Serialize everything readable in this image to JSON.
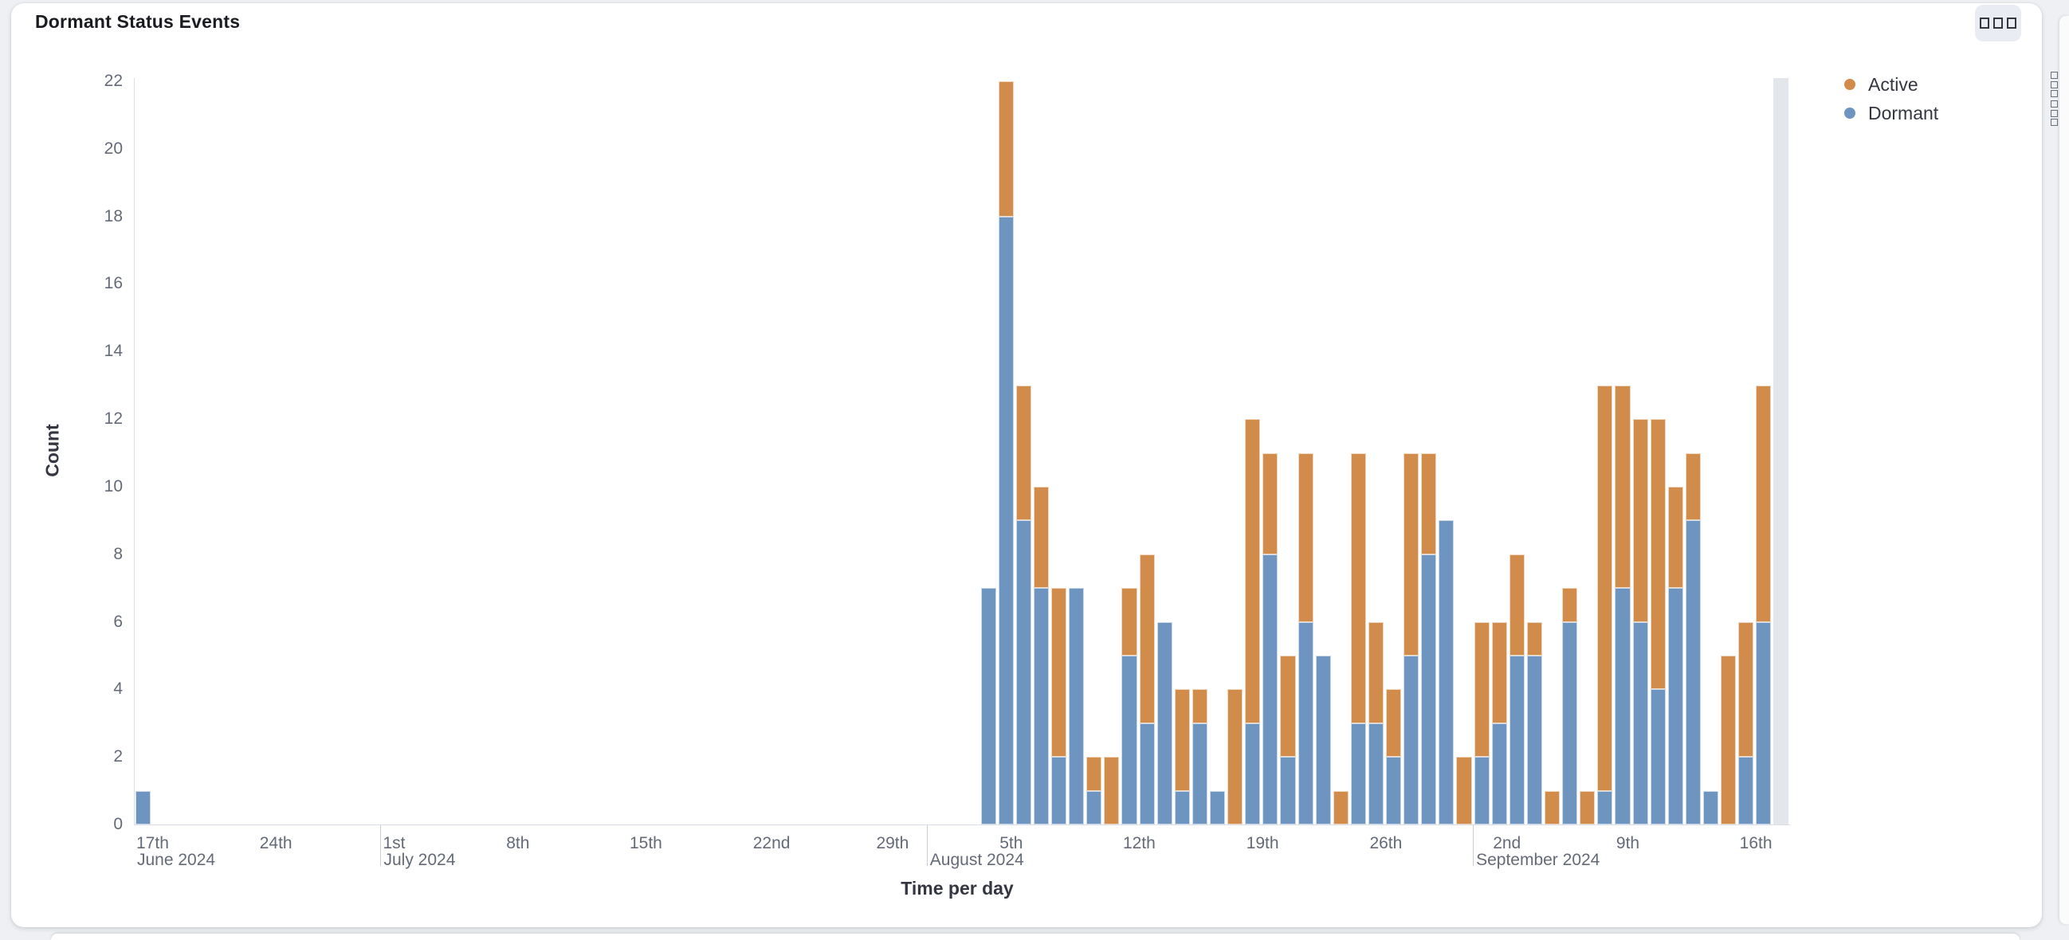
{
  "panel": {
    "title": "Dormant Status Events",
    "options_button": {
      "icon": "boxes-horizontal-icon"
    }
  },
  "legend": {
    "items": [
      {
        "label": "Active",
        "color": "#D18C4B"
      },
      {
        "label": "Dormant",
        "color": "#6E94C0"
      }
    ],
    "action_icon": "boxes-vertical-icon"
  },
  "chart_data": {
    "type": "bar",
    "stacked": true,
    "title": "Dormant Status Events",
    "xlabel": "Time per day",
    "ylabel": "Count",
    "ylim": [
      0,
      22
    ],
    "y_tick_step": 2,
    "grid": false,
    "legend_position": "right",
    "x_axis": {
      "start_date": "June 17, 2024",
      "end_date": "September 17, 2024",
      "total_day_slots": 94,
      "ticks": [
        {
          "offset": 0,
          "label": "17th"
        },
        {
          "offset": 7,
          "label": "24th"
        },
        {
          "offset": 14,
          "label": "1st"
        },
        {
          "offset": 21,
          "label": "8th"
        },
        {
          "offset": 28,
          "label": "15th"
        },
        {
          "offset": 35,
          "label": "22nd"
        },
        {
          "offset": 42,
          "label": "29th"
        },
        {
          "offset": 49,
          "label": "5th"
        },
        {
          "offset": 56,
          "label": "12th"
        },
        {
          "offset": 63,
          "label": "19th"
        },
        {
          "offset": 70,
          "label": "26th"
        },
        {
          "offset": 77,
          "label": "2nd"
        },
        {
          "offset": 84,
          "label": "9th"
        },
        {
          "offset": 91,
          "label": "16th"
        }
      ],
      "months": [
        {
          "offset": 0,
          "label": "June 2024",
          "line": false
        },
        {
          "offset": 14,
          "label": "July 2024",
          "line": true
        },
        {
          "offset": 45,
          "label": "August 2024",
          "line": true
        },
        {
          "offset": 76,
          "label": "September 2024",
          "line": true
        }
      ]
    },
    "series": [
      {
        "name": "Dormant",
        "color": "#6E94C0",
        "stack_order": "bottom"
      },
      {
        "name": "Active",
        "color": "#D18C4B",
        "stack_order": "top"
      }
    ],
    "points": [
      {
        "offset": 0,
        "date": "Jun 17",
        "dormant": 1,
        "active": 0
      },
      {
        "offset": 48,
        "date": "Aug 4",
        "dormant": 7,
        "active": 0
      },
      {
        "offset": 49,
        "date": "Aug 5",
        "dormant": 18,
        "active": 4
      },
      {
        "offset": 50,
        "date": "Aug 6",
        "dormant": 9,
        "active": 4
      },
      {
        "offset": 51,
        "date": "Aug 7",
        "dormant": 7,
        "active": 3
      },
      {
        "offset": 52,
        "date": "Aug 8",
        "dormant": 2,
        "active": 5
      },
      {
        "offset": 53,
        "date": "Aug 9",
        "dormant": 7,
        "active": 0
      },
      {
        "offset": 54,
        "date": "Aug 10",
        "dormant": 1,
        "active": 1
      },
      {
        "offset": 55,
        "date": "Aug 11",
        "dormant": 0,
        "active": 2
      },
      {
        "offset": 56,
        "date": "Aug 12",
        "dormant": 5,
        "active": 2
      },
      {
        "offset": 57,
        "date": "Aug 13",
        "dormant": 3,
        "active": 5
      },
      {
        "offset": 58,
        "date": "Aug 14",
        "dormant": 6,
        "active": 0
      },
      {
        "offset": 59,
        "date": "Aug 15",
        "dormant": 1,
        "active": 3
      },
      {
        "offset": 60,
        "date": "Aug 16",
        "dormant": 3,
        "active": 1
      },
      {
        "offset": 61,
        "date": "Aug 17",
        "dormant": 1,
        "active": 0
      },
      {
        "offset": 62,
        "date": "Aug 18",
        "dormant": 0,
        "active": 4
      },
      {
        "offset": 63,
        "date": "Aug 19",
        "dormant": 3,
        "active": 9
      },
      {
        "offset": 64,
        "date": "Aug 20",
        "dormant": 8,
        "active": 3
      },
      {
        "offset": 65,
        "date": "Aug 21",
        "dormant": 2,
        "active": 3
      },
      {
        "offset": 66,
        "date": "Aug 22",
        "dormant": 6,
        "active": 5
      },
      {
        "offset": 67,
        "date": "Aug 23",
        "dormant": 5,
        "active": 0
      },
      {
        "offset": 68,
        "date": "Aug 24",
        "dormant": 0,
        "active": 1
      },
      {
        "offset": 69,
        "date": "Aug 25",
        "dormant": 3,
        "active": 8
      },
      {
        "offset": 70,
        "date": "Aug 26",
        "dormant": 3,
        "active": 3
      },
      {
        "offset": 71,
        "date": "Aug 27",
        "dormant": 2,
        "active": 2
      },
      {
        "offset": 72,
        "date": "Aug 28",
        "dormant": 5,
        "active": 6
      },
      {
        "offset": 73,
        "date": "Aug 29",
        "dormant": 8,
        "active": 3
      },
      {
        "offset": 74,
        "date": "Aug 30",
        "dormant": 9,
        "active": 0
      },
      {
        "offset": 75,
        "date": "Aug 31",
        "dormant": 0,
        "active": 2
      },
      {
        "offset": 76,
        "date": "Sep 1",
        "dormant": 2,
        "active": 4
      },
      {
        "offset": 77,
        "date": "Sep 2",
        "dormant": 3,
        "active": 3
      },
      {
        "offset": 78,
        "date": "Sep 3",
        "dormant": 5,
        "active": 3
      },
      {
        "offset": 79,
        "date": "Sep 4",
        "dormant": 5,
        "active": 1
      },
      {
        "offset": 80,
        "date": "Sep 5",
        "dormant": 0,
        "active": 1
      },
      {
        "offset": 81,
        "date": "Sep 6",
        "dormant": 6,
        "active": 1
      },
      {
        "offset": 82,
        "date": "Sep 7",
        "dormant": 0,
        "active": 1
      },
      {
        "offset": 83,
        "date": "Sep 8",
        "dormant": 1,
        "active": 12
      },
      {
        "offset": 84,
        "date": "Sep 9",
        "dormant": 7,
        "active": 6
      },
      {
        "offset": 85,
        "date": "Sep 10",
        "dormant": 6,
        "active": 6
      },
      {
        "offset": 86,
        "date": "Sep 11",
        "dormant": 4,
        "active": 8
      },
      {
        "offset": 87,
        "date": "Sep 12",
        "dormant": 7,
        "active": 3
      },
      {
        "offset": 88,
        "date": "Sep 13",
        "dormant": 9,
        "active": 2
      },
      {
        "offset": 89,
        "date": "Sep 14",
        "dormant": 1,
        "active": 0
      },
      {
        "offset": 90,
        "date": "Sep 15",
        "dormant": 0,
        "active": 5
      },
      {
        "offset": 91,
        "date": "Sep 16",
        "dormant": 2,
        "active": 4
      },
      {
        "offset": 92,
        "date": "Sep 17",
        "dormant": 6,
        "active": 7
      }
    ],
    "partial_bucket_marker": {
      "offset": 93,
      "color": "#E3E6EB"
    }
  }
}
